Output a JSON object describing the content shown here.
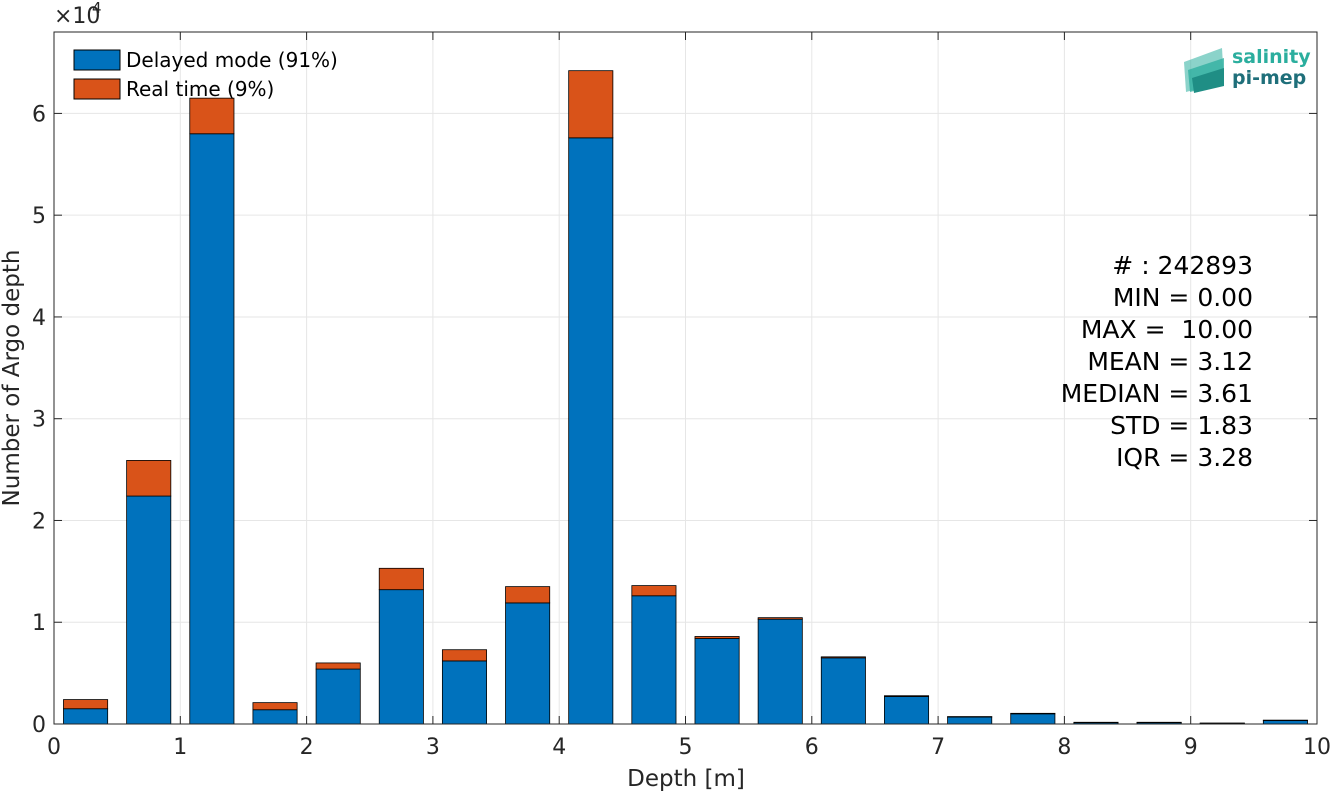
{
  "chart_data": {
    "type": "bar",
    "stacked": true,
    "xlabel": "Depth [m]",
    "ylabel": "Number of Argo depth",
    "y_exponent_base": "×10",
    "y_exponent_power": "4",
    "xlim": [
      0,
      10
    ],
    "ylim": [
      0,
      68000
    ],
    "x_ticks": [
      0,
      1,
      2,
      3,
      4,
      5,
      6,
      7,
      8,
      9,
      10
    ],
    "x_tick_labels": [
      "0",
      "1",
      "2",
      "3",
      "4",
      "5",
      "6",
      "7",
      "8",
      "9",
      "10"
    ],
    "y_ticks": [
      0,
      10000,
      20000,
      30000,
      40000,
      50000,
      60000
    ],
    "y_tick_labels": [
      "0",
      "1",
      "2",
      "3",
      "4",
      "5",
      "6"
    ],
    "grid": true,
    "legend_position": "top-left",
    "bin_width": 0.5,
    "bin_centers": [
      0.25,
      0.75,
      1.25,
      1.75,
      2.25,
      2.75,
      3.25,
      3.75,
      4.25,
      4.75,
      5.25,
      5.75,
      6.25,
      6.75,
      7.25,
      7.75,
      8.25,
      8.75,
      9.25,
      9.75
    ],
    "series": [
      {
        "name": "Delayed mode (91%)",
        "color": "#0072BD",
        "values": [
          1500,
          22400,
          58000,
          1400,
          5400,
          13200,
          6200,
          11900,
          57600,
          12600,
          8400,
          10300,
          6500,
          2700,
          700,
          1000,
          150,
          150,
          80,
          350
        ]
      },
      {
        "name": "Real time (9%)",
        "color": "#D95319",
        "values": [
          900,
          3500,
          3500,
          700,
          600,
          2100,
          1100,
          1600,
          6600,
          1000,
          200,
          150,
          100,
          80,
          30,
          50,
          20,
          20,
          10,
          30
        ]
      }
    ],
    "annotations": [
      "# : 242893",
      "MIN = 0.00",
      "MAX =  10.00",
      "MEAN = 3.12",
      "MEDIAN = 3.61",
      "STD = 1.83",
      "IQR = 3.28"
    ]
  },
  "logo": {
    "line1": "salinity",
    "line2": "pi-mep",
    "color1": "#2BAE9E",
    "color2": "#1F6F7A"
  }
}
